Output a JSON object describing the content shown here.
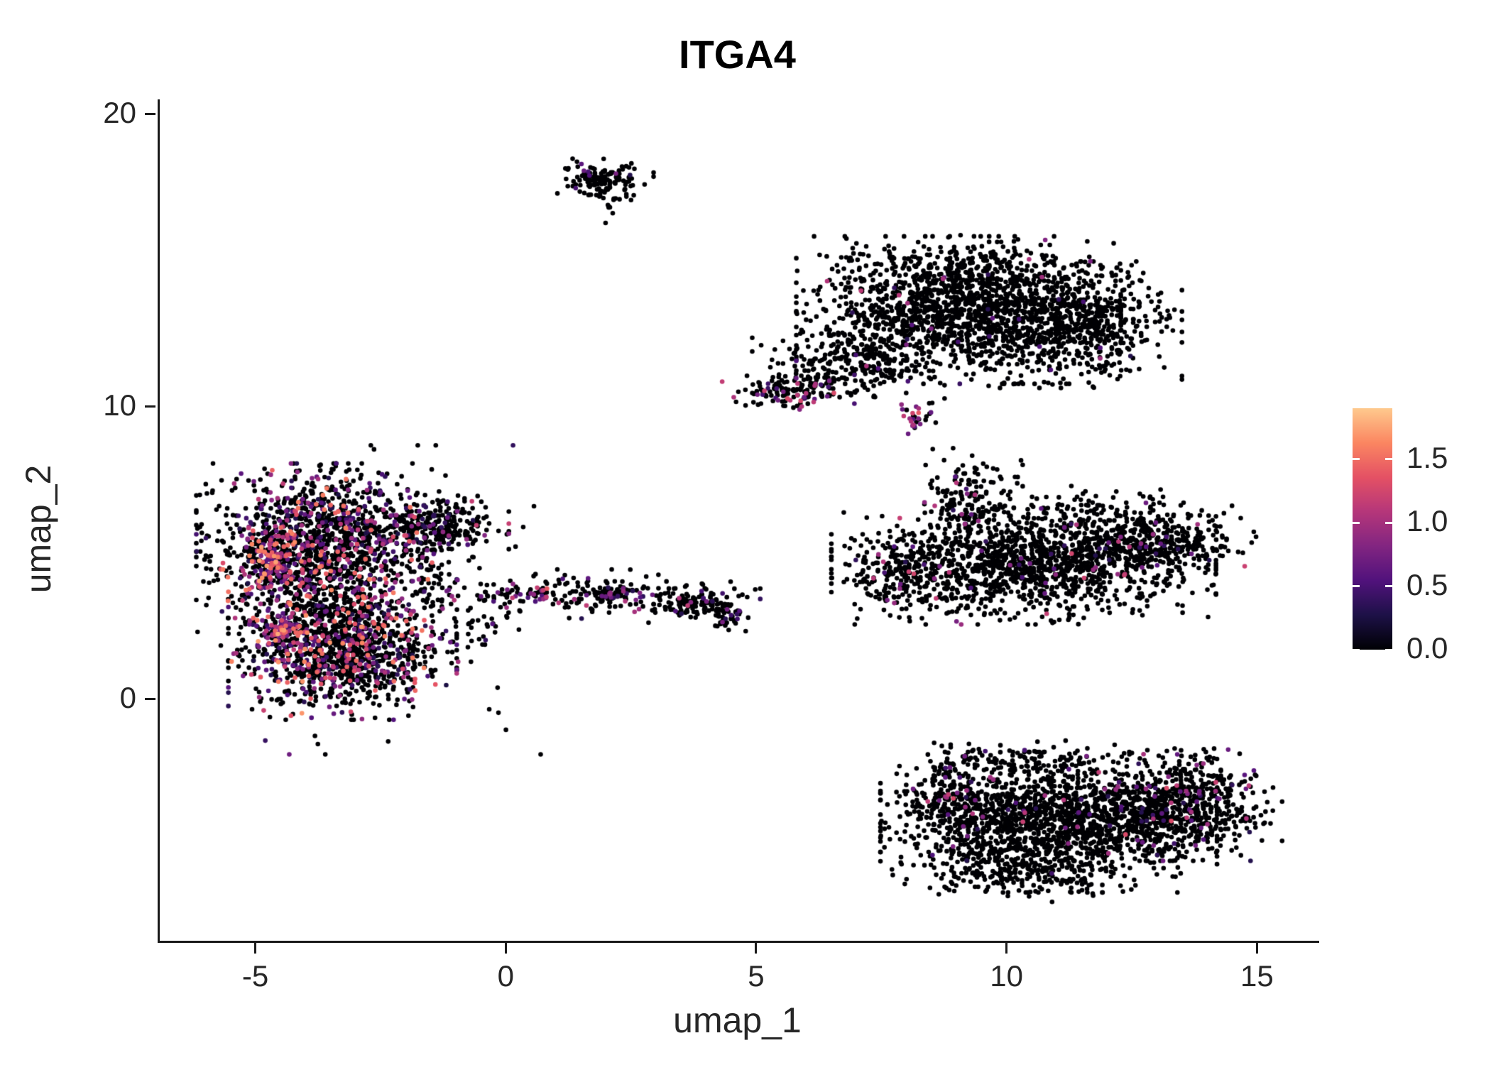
{
  "chart_data": {
    "type": "scatter",
    "title": "ITGA4",
    "xlabel": "umap_1",
    "ylabel": "umap_2",
    "xlim": [
      -6.95,
      16.2
    ],
    "ylim": [
      -8.25,
      20.5
    ],
    "xticks": [
      -5,
      0,
      5,
      10,
      15
    ],
    "yticks": [
      0,
      10,
      20
    ],
    "grid": false,
    "background": "#ffffff",
    "axis_color": "#1a1a1a",
    "legend": {
      "type": "colorbar",
      "position": "right",
      "vmin": 0,
      "vmax": 1.9,
      "ticks": [
        0.0,
        0.5,
        1.0,
        1.5
      ],
      "tick_labels": [
        "0.0",
        "0.5",
        "1.0",
        "1.5"
      ],
      "colormap": "magma",
      "stops": [
        "#000004",
        "#1d1147",
        "#51127c",
        "#822581",
        "#b5367a",
        "#e45164",
        "#fb8661",
        "#fec98d"
      ]
    },
    "zero_color": "#000004",
    "seed": 42,
    "point_radius": 3.3,
    "clusters": [
      {
        "name": "left-upper-lobe",
        "n": 1400,
        "cx": -3.7,
        "cy": 5.3,
        "sx": 1.05,
        "sy": 1.15,
        "p": 0.28,
        "lo": 0.25,
        "hi": 1.6
      },
      {
        "name": "left-lower-lobe",
        "n": 1200,
        "cx": -3.3,
        "cy": 1.7,
        "sx": 0.95,
        "sy": 1.0,
        "p": 0.3,
        "lo": 0.25,
        "hi": 1.7
      },
      {
        "name": "left-upper-right-wing",
        "n": 250,
        "cx": -1.3,
        "cy": 5.9,
        "sx": 0.55,
        "sy": 0.5,
        "p": 0.1,
        "lo": 0.3,
        "hi": 1.2
      },
      {
        "name": "left-halo",
        "n": 150,
        "cx": -2.8,
        "cy": 3.4,
        "sx": 1.8,
        "sy": 2.2,
        "p": 0.15,
        "lo": 0.3,
        "hi": 1.3
      },
      {
        "name": "left-edge-hotspot-upper",
        "n": 120,
        "cx": -4.7,
        "cy": 4.6,
        "sx": 0.25,
        "sy": 0.45,
        "p": 0.75,
        "lo": 0.5,
        "hi": 1.8
      },
      {
        "name": "left-edge-hotspot-lower",
        "n": 100,
        "cx": -4.5,
        "cy": 2.3,
        "sx": 0.3,
        "sy": 0.4,
        "p": 0.7,
        "lo": 0.4,
        "hi": 1.8
      },
      {
        "name": "bridge-strip",
        "n": 160,
        "cx": 1.2,
        "cy": 3.6,
        "sx": 1.6,
        "sy": 0.35,
        "p": 0.18,
        "lo": 0.3,
        "hi": 1.2
      },
      {
        "name": "bridge-clump-a",
        "n": 70,
        "cx": 2.0,
        "cy": 3.6,
        "sx": 0.25,
        "sy": 0.18,
        "p": 0.25,
        "lo": 0.3,
        "hi": 1.2
      },
      {
        "name": "bridge-clump-b",
        "n": 130,
        "cx": 3.7,
        "cy": 3.3,
        "sx": 0.45,
        "sy": 0.3,
        "p": 0.06,
        "lo": 0.3,
        "hi": 1.0
      },
      {
        "name": "bridge-clump-c",
        "n": 40,
        "cx": 4.4,
        "cy": 2.8,
        "sx": 0.2,
        "sy": 0.3,
        "p": 0.05,
        "lo": 0.3,
        "hi": 1.0
      },
      {
        "name": "bridge-hot-clump",
        "n": 25,
        "cx": 0.6,
        "cy": 3.6,
        "sx": 0.2,
        "sy": 0.15,
        "p": 0.6,
        "lo": 0.5,
        "hi": 1.5
      },
      {
        "name": "bridge-left-scatter",
        "n": 60,
        "cx": -0.9,
        "cy": 3.2,
        "sx": 0.7,
        "sy": 1.0,
        "p": 0.08,
        "lo": 0.3,
        "hi": 1.0
      },
      {
        "name": "top-small-cluster",
        "n": 130,
        "cx": 1.95,
        "cy": 17.8,
        "sx": 0.4,
        "sy": 0.28,
        "p": 0.02,
        "lo": 0.3,
        "hi": 0.9
      },
      {
        "name": "top-small-tail",
        "n": 15,
        "cx": 2.1,
        "cy": 17.0,
        "sx": 0.15,
        "sy": 0.3,
        "p": 0.0,
        "lo": 0.3,
        "hi": 0.9
      },
      {
        "name": "topright-main",
        "n": 1500,
        "cx": 9.0,
        "cy": 13.3,
        "sx": 1.35,
        "sy": 1.05,
        "p": 0.015,
        "lo": 0.3,
        "hi": 1.2
      },
      {
        "name": "topright-right-lobe",
        "n": 600,
        "cx": 11.3,
        "cy": 12.8,
        "sx": 0.9,
        "sy": 0.9,
        "p": 0.01,
        "lo": 0.3,
        "hi": 1.0
      },
      {
        "name": "topright-sw-tail",
        "n": 250,
        "cx": 6.8,
        "cy": 11.3,
        "sx": 0.8,
        "sy": 0.5,
        "p": 0.03,
        "lo": 0.3,
        "hi": 1.1
      },
      {
        "name": "topright-left-strip",
        "n": 120,
        "cx": 5.6,
        "cy": 10.5,
        "sx": 0.55,
        "sy": 0.25,
        "p": 0.25,
        "lo": 0.4,
        "hi": 1.3
      },
      {
        "name": "topright-below-clump",
        "n": 30,
        "cx": 8.2,
        "cy": 9.6,
        "sx": 0.18,
        "sy": 0.22,
        "p": 0.5,
        "lo": 0.6,
        "hi": 1.4
      },
      {
        "name": "topright-top-sparse",
        "n": 100,
        "cx": 9.5,
        "cy": 14.9,
        "sx": 1.3,
        "sy": 0.4,
        "p": 0.02,
        "lo": 0.3,
        "hi": 1.0
      },
      {
        "name": "midright-main-band",
        "n": 1300,
        "cx": 10.3,
        "cy": 4.6,
        "sx": 1.6,
        "sy": 0.85,
        "p": 0.03,
        "lo": 0.3,
        "hi": 1.3
      },
      {
        "name": "midright-right-arm",
        "n": 400,
        "cx": 12.8,
        "cy": 5.4,
        "sx": 0.9,
        "sy": 0.55,
        "p": 0.05,
        "lo": 0.3,
        "hi": 1.2
      },
      {
        "name": "midright-top-protrusion",
        "n": 150,
        "cx": 9.2,
        "cy": 6.9,
        "sx": 0.45,
        "sy": 0.7,
        "p": 0.06,
        "lo": 0.3,
        "hi": 1.2
      },
      {
        "name": "midright-left-edge",
        "n": 120,
        "cx": 7.8,
        "cy": 4.2,
        "sx": 0.4,
        "sy": 0.6,
        "p": 0.12,
        "lo": 0.4,
        "hi": 1.4
      },
      {
        "name": "midright-top-sparse",
        "n": 120,
        "cx": 11.2,
        "cy": 6.3,
        "sx": 1.2,
        "sy": 0.5,
        "p": 0.03,
        "lo": 0.3,
        "hi": 1.0
      },
      {
        "name": "bottomright-main",
        "n": 1500,
        "cx": 10.8,
        "cy": -4.2,
        "sx": 1.4,
        "sy": 1.0,
        "p": 0.02,
        "lo": 0.3,
        "hi": 1.2
      },
      {
        "name": "bottomright-right-lobe",
        "n": 700,
        "cx": 13.3,
        "cy": -3.6,
        "sx": 0.9,
        "sy": 0.8,
        "p": 0.1,
        "lo": 0.3,
        "hi": 1.3
      },
      {
        "name": "bottomright-left-edge",
        "n": 200,
        "cx": 8.9,
        "cy": -3.4,
        "sx": 0.45,
        "sy": 0.9,
        "p": 0.08,
        "lo": 0.3,
        "hi": 1.3
      },
      {
        "name": "bottomright-top-sparse",
        "n": 100,
        "cx": 10.3,
        "cy": -2.2,
        "sx": 0.9,
        "sy": 0.35,
        "p": 0.04,
        "lo": 0.3,
        "hi": 1.0
      },
      {
        "name": "bottomright-bottom-tail",
        "n": 150,
        "cx": 10.5,
        "cy": -6.0,
        "sx": 1.0,
        "sy": 0.4,
        "p": 0.02,
        "lo": 0.3,
        "hi": 1.0
      }
    ]
  }
}
